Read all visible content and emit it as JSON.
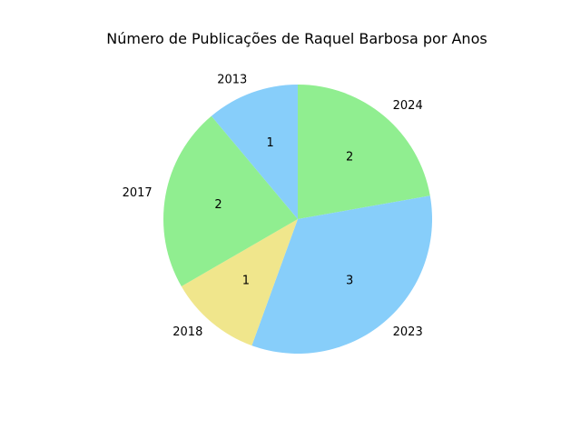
{
  "chart_data": {
    "type": "pie",
    "title": "Número de Publicações de Raquel Barbosa por Anos",
    "categories": [
      "2024",
      "2023",
      "2018",
      "2017",
      "2013"
    ],
    "values": [
      2,
      3,
      1,
      2,
      1
    ],
    "colors": [
      "#90ee90",
      "#87cefa",
      "#f0e68c",
      "#90ee90",
      "#87cefa"
    ],
    "start_angle_deg": 90,
    "direction": "clockwise",
    "legend": "none"
  }
}
